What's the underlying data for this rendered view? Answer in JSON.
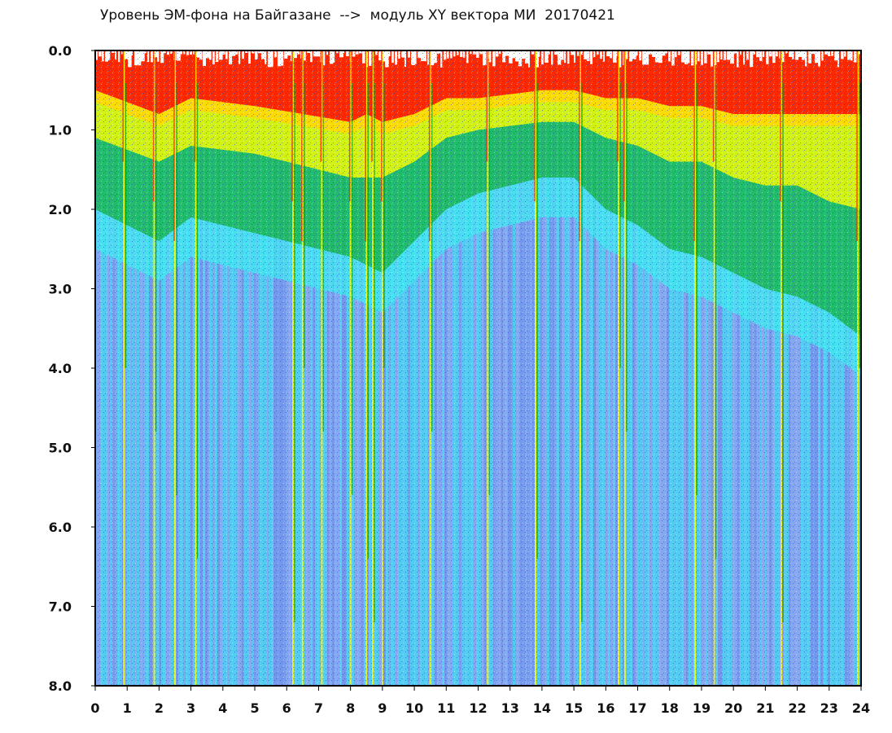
{
  "chart_data": {
    "type": "heatmap",
    "title": "Уровень ЭМ-фона на Байгазане  -->  модуль XY вектора МИ  20170421",
    "xlabel": "",
    "ylabel": "",
    "xlim": [
      0,
      24
    ],
    "ylim": [
      8.0,
      0.0
    ],
    "y_axis_inverted": true,
    "x_ticks": [
      "0",
      "1",
      "2",
      "3",
      "4",
      "5",
      "6",
      "7",
      "8",
      "9",
      "10",
      "11",
      "12",
      "13",
      "14",
      "15",
      "16",
      "17",
      "18",
      "19",
      "20",
      "21",
      "22",
      "23",
      "24"
    ],
    "y_ticks": [
      "0.0",
      "1.0",
      "2.0",
      "3.0",
      "4.0",
      "5.0",
      "6.0",
      "7.0",
      "8.0"
    ],
    "color_scale": [
      "#ff2000",
      "#ffd800",
      "#ffff00",
      "#00a000",
      "#40e8f0",
      "#9aa8f0",
      "#3030e0"
    ],
    "band_levels": {
      "x": [
        0,
        2,
        3,
        5,
        8,
        8.5,
        9,
        10,
        11,
        12,
        14,
        15,
        16,
        17,
        18,
        19,
        20,
        21,
        22,
        23,
        24
      ],
      "red_to": [
        0.5,
        0.8,
        0.6,
        0.7,
        0.9,
        0.8,
        0.9,
        0.8,
        0.6,
        0.6,
        0.5,
        0.5,
        0.6,
        0.6,
        0.7,
        0.7,
        0.8,
        0.8,
        0.8,
        0.8,
        0.8
      ],
      "yellow_to": [
        1.1,
        1.4,
        1.2,
        1.3,
        1.6,
        1.6,
        1.6,
        1.4,
        1.1,
        1.0,
        0.9,
        0.9,
        1.1,
        1.2,
        1.4,
        1.4,
        1.6,
        1.7,
        1.7,
        1.9,
        2.0
      ],
      "green_to": [
        2.0,
        2.4,
        2.1,
        2.3,
        2.6,
        2.7,
        2.8,
        2.4,
        2.0,
        1.8,
        1.6,
        1.6,
        2.0,
        2.2,
        2.5,
        2.6,
        2.8,
        3.0,
        3.1,
        3.3,
        3.6
      ]
    },
    "spikes": [
      0.9,
      1.85,
      2.5,
      3.15,
      6.2,
      6.5,
      7.1,
      8.0,
      8.5,
      8.7,
      9.0,
      10.5,
      12.3,
      13.8,
      15.2,
      16.4,
      16.6,
      18.8,
      19.4,
      21.5,
      23.9
    ]
  }
}
